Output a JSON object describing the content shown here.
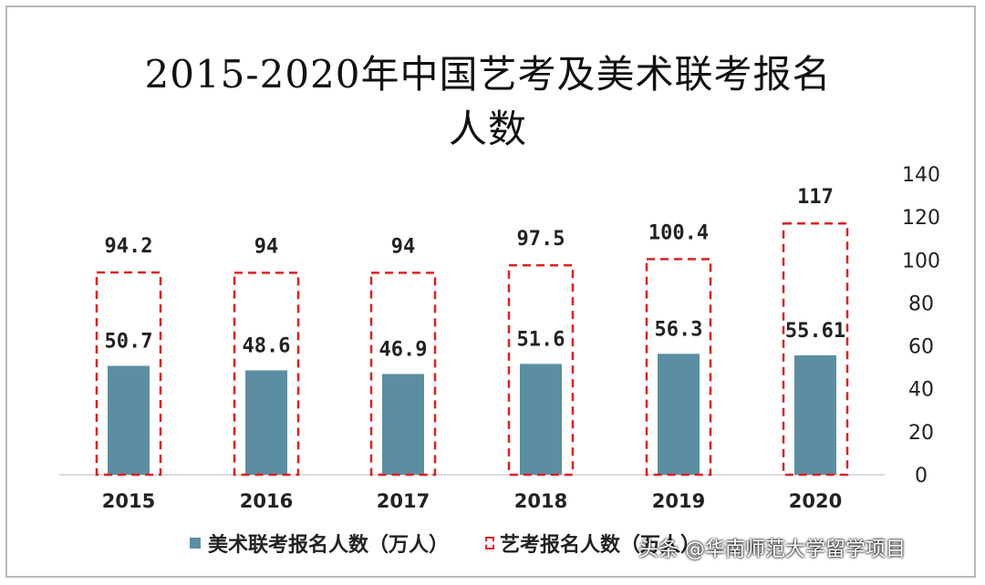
{
  "chart_data": {
    "type": "bar",
    "title_line1": "2015-2020年中国艺考及美术联考报名",
    "title_line2": "人数",
    "categories": [
      "2015",
      "2016",
      "2017",
      "2018",
      "2019",
      "2020"
    ],
    "series": [
      {
        "name": "美术联考报名人数（万人）",
        "values": [
          50.7,
          48.6,
          46.9,
          51.6,
          56.3,
          55.61
        ],
        "style": "filled",
        "color": "#5b8ea3"
      },
      {
        "name": "艺考报名人数（万人）",
        "values": [
          94.2,
          94,
          94,
          97.5,
          100.4,
          117
        ],
        "style": "dashed-outline",
        "color": "#e02020"
      }
    ],
    "value_labels_fine": [
      "50.7",
      "48.6",
      "46.9",
      "51.6",
      "56.3",
      "55.61"
    ],
    "value_labels_exam": [
      "94.2",
      "94",
      "94",
      "97.5",
      "100.4",
      "117"
    ],
    "y_ticks": [
      "0",
      "20",
      "40",
      "60",
      "80",
      "100",
      "120",
      "140"
    ],
    "ylim": [
      0,
      140
    ],
    "y_axis_side": "right",
    "legend_position": "bottom"
  },
  "watermark": "头条 @华南师范大学留学项目"
}
